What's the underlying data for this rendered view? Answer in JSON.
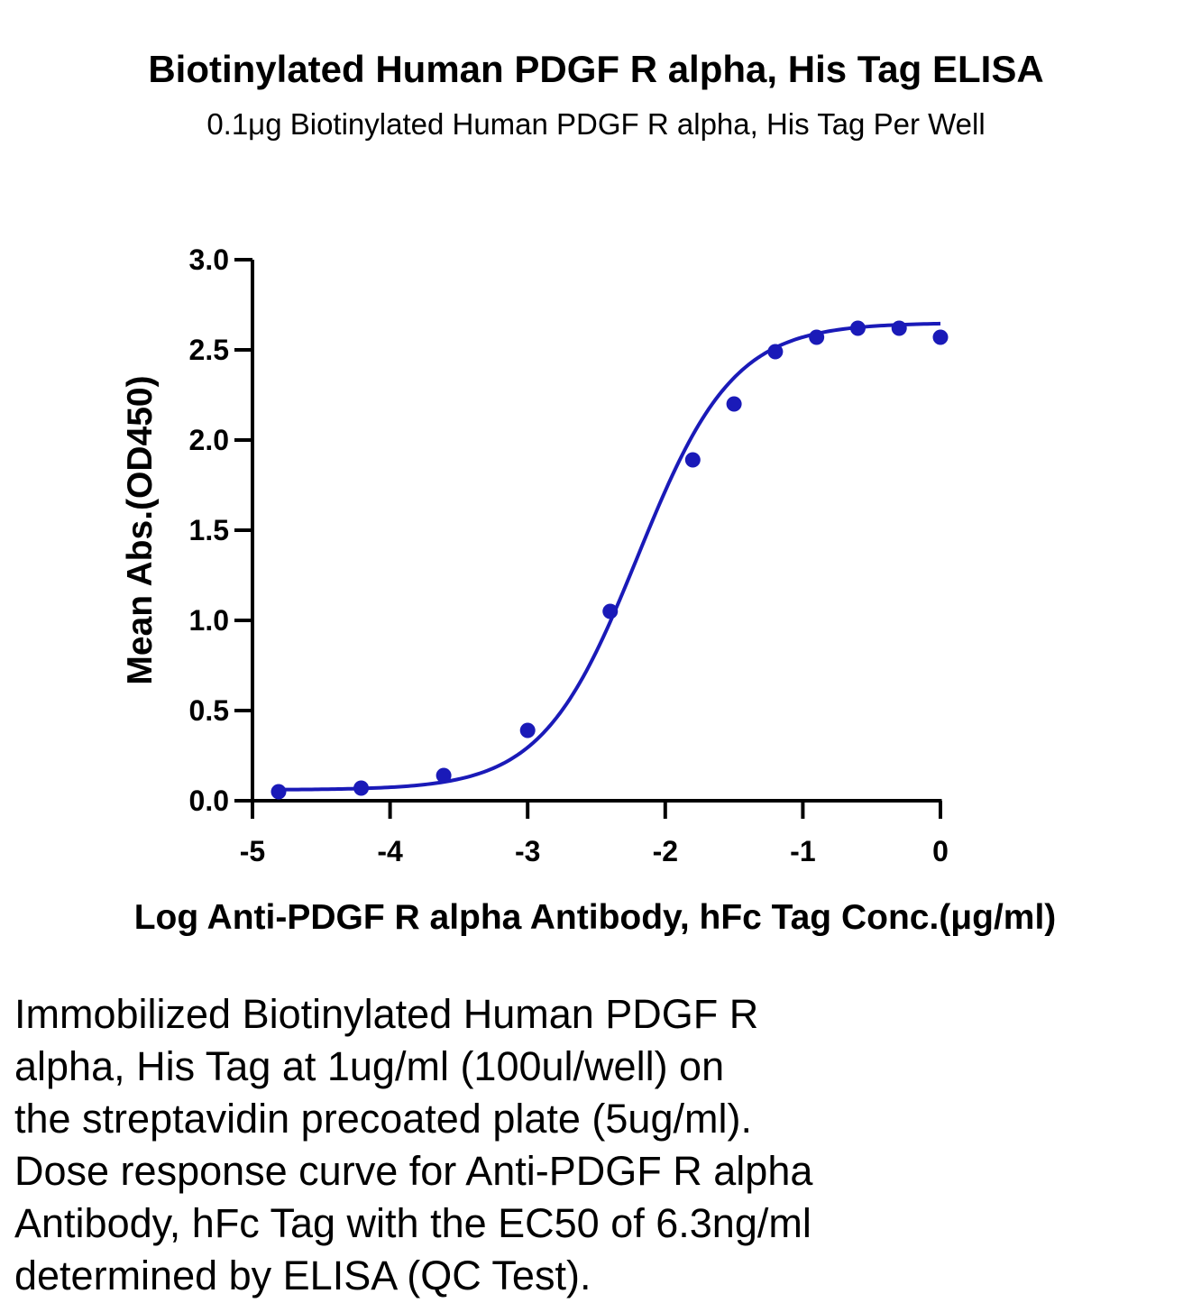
{
  "chart_data": {
    "type": "scatter",
    "title": "Biotinylated Human PDGF R alpha, His Tag ELISA",
    "subtitle": "0.1μg Biotinylated Human PDGF R alpha, His Tag Per Well",
    "xlabel": "Log Anti-PDGF R alpha Antibody, hFc Tag Conc.(μg/ml)",
    "ylabel": "Mean Abs.(OD450)",
    "xlim": [
      -5,
      0
    ],
    "ylim": [
      0,
      3
    ],
    "x_ticks": [
      "-5",
      "-4",
      "-3",
      "-2",
      "-1",
      "0"
    ],
    "y_ticks": [
      "0.0",
      "0.5",
      "1.0",
      "1.5",
      "2.0",
      "2.5",
      "3.0"
    ],
    "grid": false,
    "color": "#1a1ab8",
    "points": {
      "x": [
        -4.81,
        -4.21,
        -3.61,
        -3.0,
        -2.4,
        -1.8,
        -1.5,
        -1.2,
        -0.9,
        -0.6,
        -0.3,
        0.0
      ],
      "y": [
        0.05,
        0.07,
        0.14,
        0.39,
        1.05,
        1.89,
        2.2,
        2.49,
        2.57,
        2.62,
        2.62,
        2.57
      ]
    },
    "fit_curve": {
      "model": "4PL",
      "bottom": 0.06,
      "top": 2.65,
      "log_ec50": -2.2,
      "hill": 1.25,
      "x_range": [
        -4.81,
        0.0
      ]
    }
  },
  "caption": {
    "lines": [
      "Immobilized Biotinylated Human PDGF R",
      "alpha, His Tag at 1ug/ml (100ul/well) on",
      "the streptavidin precoated plate (5ug/ml).",
      "Dose response curve for Anti-PDGF R alpha",
      "Antibody, hFc Tag with the EC50 of 6.3ng/ml",
      "determined by ELISA (QC Test)."
    ]
  }
}
